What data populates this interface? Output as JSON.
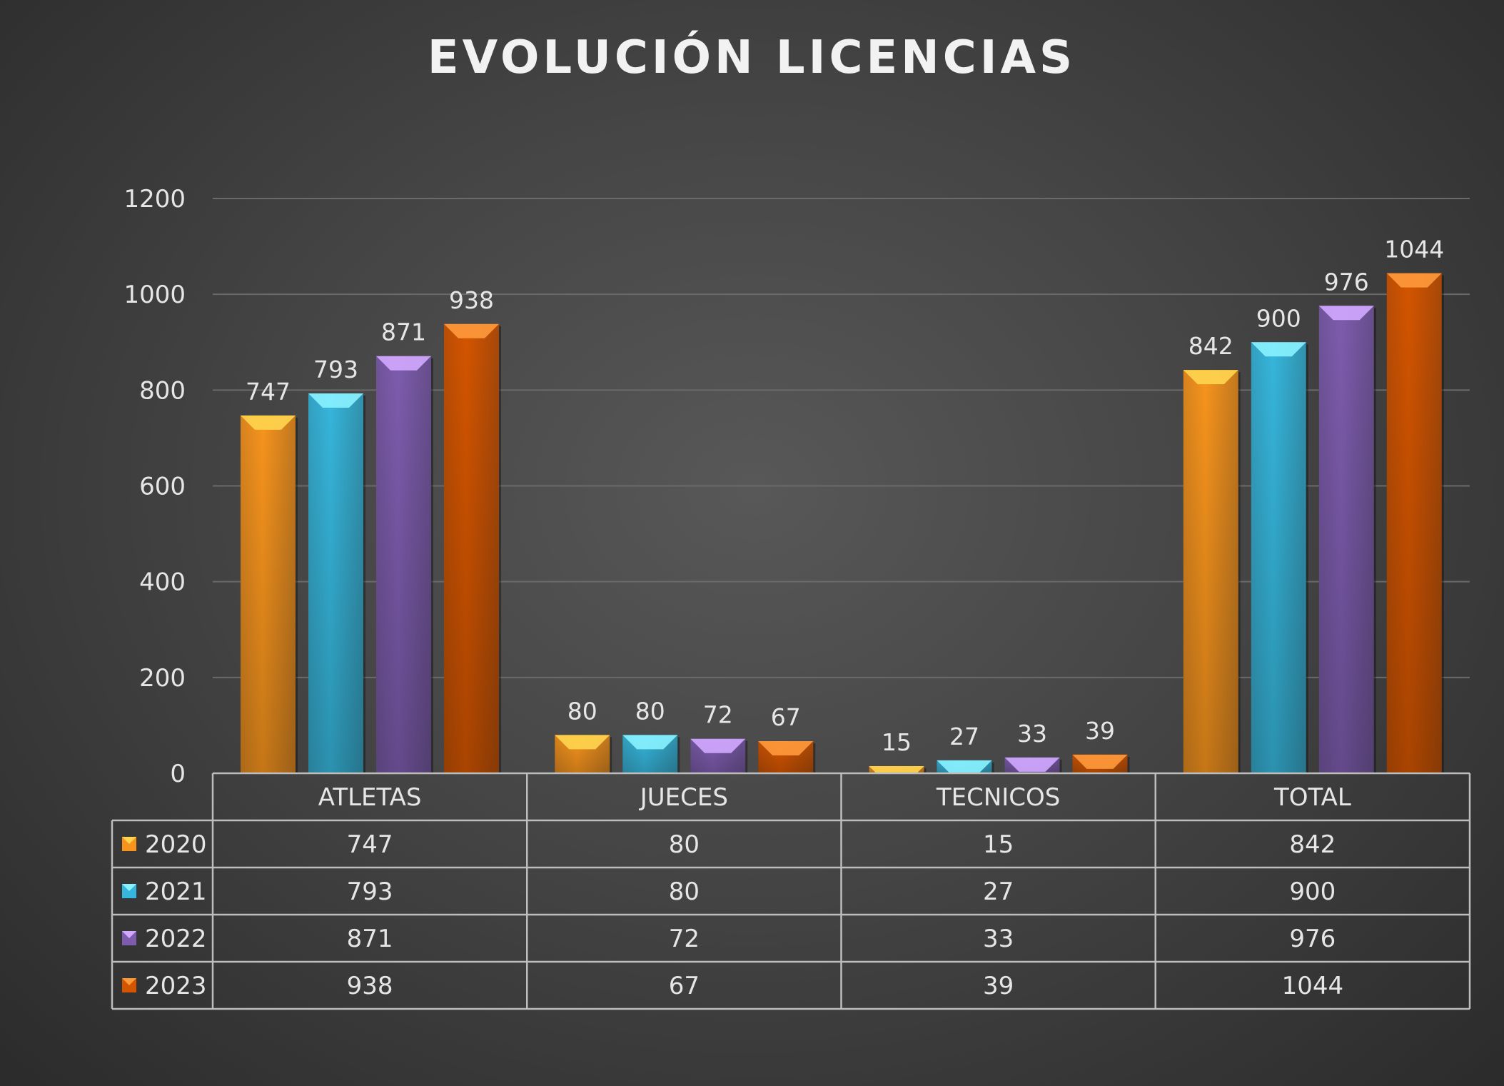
{
  "chart_data": {
    "type": "bar",
    "title": "EVOLUCIÓN LICENCIAS",
    "categories": [
      "ATLETAS",
      "JUECES",
      "TECNICOS",
      "TOTAL"
    ],
    "series": [
      {
        "name": "2020",
        "values": [
          747,
          80,
          15,
          842
        ],
        "color": "#f7941d",
        "top": "#ffd54f"
      },
      {
        "name": "2021",
        "values": [
          793,
          80,
          27,
          900
        ],
        "color": "#36b6dc",
        "top": "#8af2ff"
      },
      {
        "name": "2022",
        "values": [
          871,
          72,
          33,
          976
        ],
        "color": "#7d5cae",
        "top": "#d2a8ff"
      },
      {
        "name": "2023",
        "values": [
          938,
          67,
          39,
          1044
        ],
        "color": "#d45500",
        "top": "#ff9a3c"
      }
    ],
    "ylim": [
      0,
      1200
    ],
    "yticks": [
      0,
      200,
      400,
      600,
      800,
      1000,
      1200
    ],
    "grid": true,
    "legend": "data-table",
    "data_labels": true
  }
}
